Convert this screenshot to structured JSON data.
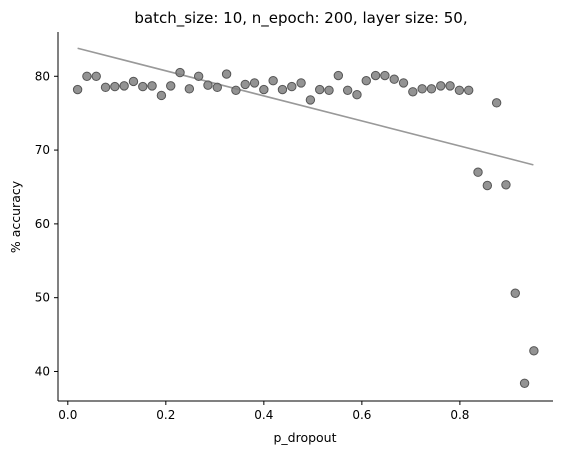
{
  "chart_data": {
    "type": "scatter",
    "title": "batch_size: 10, n_epoch: 200, layer size: 50,",
    "xlabel": "p_dropout",
    "ylabel": "% accuracy",
    "xlim": [
      -0.02,
      0.99
    ],
    "ylim": [
      36.0,
      86.0
    ],
    "xticks": [
      "0.0",
      "0.2",
      "0.4",
      "0.6",
      "0.8"
    ],
    "yticks": [
      "40",
      "50",
      "60",
      "70",
      "80"
    ],
    "grid": false,
    "colors": {
      "points": "#808080",
      "trend": "#999999"
    },
    "x": [
      0.02,
      0.039,
      0.058,
      0.077,
      0.096,
      0.115,
      0.134,
      0.153,
      0.172,
      0.191,
      0.21,
      0.229,
      0.248,
      0.267,
      0.286,
      0.305,
      0.324,
      0.343,
      0.362,
      0.381,
      0.4,
      0.419,
      0.438,
      0.457,
      0.476,
      0.495,
      0.514,
      0.533,
      0.552,
      0.571,
      0.59,
      0.609,
      0.628,
      0.647,
      0.666,
      0.685,
      0.704,
      0.723,
      0.742,
      0.761,
      0.78,
      0.799,
      0.818,
      0.837,
      0.856,
      0.875,
      0.894,
      0.913,
      0.932,
      0.951
    ],
    "y": [
      78.2,
      80.0,
      80.0,
      78.5,
      78.6,
      78.7,
      79.3,
      78.6,
      78.7,
      77.4,
      78.7,
      80.5,
      78.3,
      80.0,
      78.8,
      78.5,
      80.3,
      78.1,
      78.9,
      79.1,
      78.2,
      79.4,
      78.2,
      78.6,
      79.1,
      76.8,
      78.2,
      78.1,
      80.1,
      78.1,
      77.5,
      79.4,
      80.1,
      80.1,
      79.6,
      79.1,
      77.9,
      78.3,
      78.3,
      78.7,
      78.7,
      78.1,
      78.1,
      67.0,
      65.2,
      76.4,
      65.3,
      50.6,
      38.4,
      42.8
    ],
    "trendline": {
      "x": [
        0.02,
        0.95
      ],
      "y": [
        83.8,
        68.0
      ]
    }
  }
}
